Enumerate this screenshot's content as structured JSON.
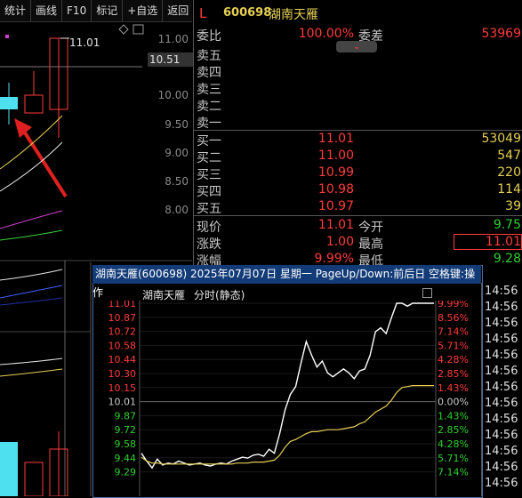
{
  "toolbar": [
    "统计",
    "画线",
    "F10",
    "标记",
    "+自选",
    "返回"
  ],
  "kline": {
    "price_labels": [
      "11.00",
      "10.51",
      "10.00",
      "9.50",
      "9.00",
      "8.50",
      "8.00"
    ],
    "high_label": "11.01",
    "last_box": "10.51"
  },
  "quote": {
    "marker": "L",
    "code": "600698",
    "name": "湖南天雁",
    "weibi_label": "委比",
    "weibi_value": "100.00%",
    "weicha_label": "委差",
    "weicha_value": "53969",
    "sell_rows": [
      "卖五",
      "卖四",
      "卖三",
      "卖二",
      "卖一"
    ],
    "buy_rows": [
      {
        "label": "买一",
        "price": "11.01",
        "vol": "53049"
      },
      {
        "label": "买二",
        "price": "11.00",
        "vol": "547"
      },
      {
        "label": "买三",
        "price": "10.99",
        "vol": "220"
      },
      {
        "label": "买四",
        "price": "10.98",
        "vol": "114"
      },
      {
        "label": "买五",
        "price": "10.97",
        "vol": "39"
      }
    ],
    "stats": [
      {
        "l1": "现价",
        "v1": "11.01",
        "l2": "今开",
        "v2": "9.75"
      },
      {
        "l1": "涨跌",
        "v1": "1.00",
        "l2": "最高",
        "v2": "11.01"
      },
      {
        "l1": "涨幅",
        "v1": "9.99%",
        "l2": "最低",
        "v2": "9.28"
      }
    ]
  },
  "popup": {
    "title": "湖南天雁(600698)  2025年07月07日  星期一  PageUp/Down:前后日  空格键:操作",
    "chart_name": "湖南天雁",
    "chart_mode": "分时(静态)"
  },
  "chart_data": {
    "type": "line",
    "title": "",
    "y_price_ticks": [
      "11.01",
      "10.87",
      "10.72",
      "10.58",
      "10.44",
      "10.30",
      "10.15",
      "10.01",
      "9.87",
      "9.72",
      "9.58",
      "9.44",
      "9.29"
    ],
    "y_pct_ticks": [
      "9.99%",
      "8.56%",
      "7.14%",
      "5.71%",
      "4.28%",
      "2.85%",
      "1.43%",
      "0.00%",
      "1.43%",
      "2.85%",
      "4.28%",
      "5.71%",
      "7.14%"
    ],
    "series": [
      {
        "values": [
          9.48,
          9.4,
          9.33,
          9.42,
          9.36,
          9.38,
          9.37,
          9.4,
          9.38,
          9.36,
          9.37,
          9.38,
          9.36,
          9.35,
          9.37,
          9.38,
          9.37,
          9.4,
          9.42,
          9.44,
          9.43,
          9.46,
          9.47,
          9.45,
          9.52,
          9.48,
          9.68,
          9.92,
          10.08,
          10.16,
          10.4,
          10.62,
          10.48,
          10.36,
          10.42,
          10.3,
          10.26,
          10.3,
          10.34,
          10.3,
          10.24,
          10.32,
          10.34,
          10.48,
          10.72,
          10.76,
          10.7,
          10.86,
          11.01,
          11.01,
          10.98,
          11.01,
          11.01,
          11.01,
          11.01,
          11.01
        ]
      },
      {
        "values": [
          9.44,
          9.4,
          9.38,
          9.38,
          9.37,
          9.37,
          9.37,
          9.37,
          9.37,
          9.37,
          9.37,
          9.37,
          9.37,
          9.37,
          9.37,
          9.37,
          9.37,
          9.37,
          9.38,
          9.38,
          9.38,
          9.39,
          9.39,
          9.39,
          9.4,
          9.41,
          9.46,
          9.54,
          9.6,
          9.62,
          9.65,
          9.68,
          9.7,
          9.7,
          9.71,
          9.72,
          9.72,
          9.72,
          9.73,
          9.74,
          9.75,
          9.78,
          9.8,
          9.85,
          9.9,
          9.93,
          9.96,
          10.02,
          10.1,
          10.15,
          10.16,
          10.17,
          10.17,
          10.17,
          10.17,
          10.17
        ]
      }
    ],
    "ylim": [
      9.29,
      11.01
    ]
  },
  "timecol": [
    "14:56",
    "14:56",
    "14:56",
    "14:56",
    "14:56",
    "14:56",
    "14:56",
    "14:56",
    "14:56",
    "14:56",
    "14:56",
    "14:56",
    "14:56"
  ]
}
